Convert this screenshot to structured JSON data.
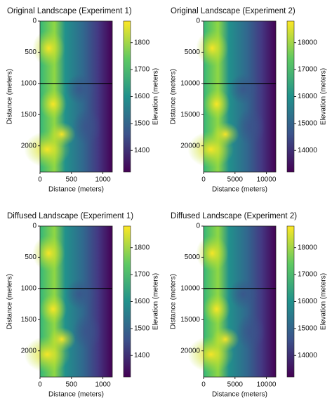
{
  "chart_data": [
    {
      "type": "heatmap",
      "title": "Original Landscape (Experiment 1)",
      "xlabel": "Distance (meters)",
      "ylabel": "Distance (meters)",
      "colorbar_label": "Elevation (meters)",
      "colormap": "viridis",
      "xlim": [
        0,
        1150
      ],
      "xticks": [
        0,
        500,
        1000
      ],
      "ylim": [
        0,
        2420
      ],
      "y_inverted": true,
      "yticks": [
        0,
        500,
        1000,
        1500,
        2000
      ],
      "clim": [
        1320,
        1880
      ],
      "cticks": [
        1400,
        1500,
        1600,
        1700,
        1800
      ],
      "hline": 1000
    },
    {
      "type": "heatmap",
      "title": "Original Landscape (Experiment 2)",
      "xlabel": "Distance (meters)",
      "ylabel": "Distance (meters)",
      "colorbar_label": "Elevation (meters)",
      "colormap": "viridis",
      "xlim": [
        0,
        11500
      ],
      "xticks": [
        0,
        5000,
        10000
      ],
      "ylim": [
        0,
        24200
      ],
      "y_inverted": true,
      "yticks": [
        0,
        5000,
        10000,
        15000,
        20000
      ],
      "clim": [
        13200,
        18800
      ],
      "cticks": [
        14000,
        15000,
        16000,
        17000,
        18000
      ],
      "hline": 10000
    },
    {
      "type": "heatmap",
      "title": "Diffused Landscape (Experiment 1)",
      "xlabel": "Distance (meters)",
      "ylabel": "Distance (meters)",
      "colorbar_label": "Elevation (meters)",
      "colormap": "viridis",
      "xlim": [
        0,
        1150
      ],
      "xticks": [
        0,
        500,
        1000
      ],
      "ylim": [
        0,
        2420
      ],
      "y_inverted": true,
      "yticks": [
        0,
        500,
        1000,
        1500,
        2000
      ],
      "clim": [
        1320,
        1880
      ],
      "cticks": [
        1400,
        1500,
        1600,
        1700,
        1800
      ],
      "hline": 1000
    },
    {
      "type": "heatmap",
      "title": "Diffused Landscape (Experiment 2)",
      "xlabel": "Distance (meters)",
      "ylabel": "Distance (meters)",
      "colorbar_label": "Elevation (meters)",
      "colormap": "viridis",
      "xlim": [
        0,
        11500
      ],
      "xticks": [
        0,
        5000,
        10000
      ],
      "ylim": [
        0,
        24200
      ],
      "y_inverted": true,
      "yticks": [
        0,
        5000,
        10000,
        15000,
        20000
      ],
      "clim": [
        13200,
        18800
      ],
      "cticks": [
        14000,
        15000,
        16000,
        17000,
        18000
      ],
      "hline": 10000
    }
  ]
}
